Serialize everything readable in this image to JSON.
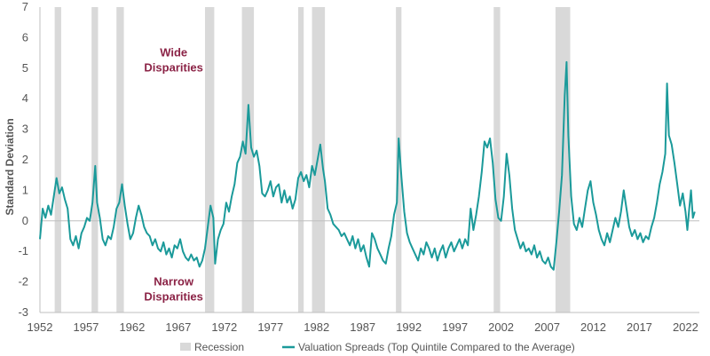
{
  "chart_data": {
    "type": "line",
    "ylabel": "Standard Deviation",
    "xlabel": "",
    "xlim": [
      1952,
      2023.5
    ],
    "ylim": [
      -3,
      7
    ],
    "x_ticks": [
      1952,
      1957,
      1962,
      1967,
      1972,
      1977,
      1982,
      1987,
      1992,
      1997,
      2002,
      2007,
      2012,
      2017,
      2022
    ],
    "y_ticks": [
      -3,
      -2,
      -1,
      0,
      1,
      2,
      3,
      4,
      5,
      6,
      7
    ],
    "grid": false,
    "legend_position": "bottom-center",
    "recession_legend": "Recession",
    "recession_color": "#d9d9d9",
    "recessions": [
      [
        1953.6,
        1954.3
      ],
      [
        1957.6,
        1958.3
      ],
      [
        1960.3,
        1961.1
      ],
      [
        1969.9,
        1970.9
      ],
      [
        1973.9,
        1975.2
      ],
      [
        1980.0,
        1980.6
      ],
      [
        1981.5,
        1982.9
      ],
      [
        1990.6,
        1991.2
      ],
      [
        2001.2,
        2001.9
      ],
      [
        2007.9,
        2009.5
      ]
    ],
    "annotations": [
      {
        "line1": "Wide",
        "line2": "Disparities",
        "x": 1966.5,
        "y": 5.3
      },
      {
        "line1": "Narrow",
        "line2": "Disparities",
        "x": 1966.5,
        "y": -2.2
      }
    ],
    "annotation_color": "#8b2346",
    "series": [
      {
        "name": "Valuation Spreads (Top Quintile Compared to the Average)",
        "color": "#1b9a9a",
        "points": [
          [
            1952.0,
            -0.6
          ],
          [
            1952.3,
            0.4
          ],
          [
            1952.6,
            0.1
          ],
          [
            1952.9,
            0.5
          ],
          [
            1953.2,
            0.2
          ],
          [
            1953.5,
            0.8
          ],
          [
            1953.8,
            1.4
          ],
          [
            1954.1,
            0.9
          ],
          [
            1954.4,
            1.1
          ],
          [
            1954.7,
            0.7
          ],
          [
            1955.0,
            0.4
          ],
          [
            1955.3,
            -0.6
          ],
          [
            1955.6,
            -0.8
          ],
          [
            1955.9,
            -0.5
          ],
          [
            1956.2,
            -0.9
          ],
          [
            1956.5,
            -0.4
          ],
          [
            1956.8,
            -0.2
          ],
          [
            1957.1,
            0.1
          ],
          [
            1957.4,
            0.0
          ],
          [
            1957.7,
            0.6
          ],
          [
            1958.0,
            1.8
          ],
          [
            1958.2,
            0.6
          ],
          [
            1958.5,
            0.1
          ],
          [
            1958.8,
            -0.6
          ],
          [
            1959.1,
            -0.8
          ],
          [
            1959.4,
            -0.5
          ],
          [
            1959.7,
            -0.6
          ],
          [
            1960.0,
            -0.2
          ],
          [
            1960.3,
            0.4
          ],
          [
            1960.6,
            0.6
          ],
          [
            1960.9,
            1.2
          ],
          [
            1961.2,
            0.5
          ],
          [
            1961.5,
            -0.1
          ],
          [
            1961.8,
            -0.6
          ],
          [
            1962.1,
            -0.4
          ],
          [
            1962.4,
            0.1
          ],
          [
            1962.7,
            0.5
          ],
          [
            1963.0,
            0.2
          ],
          [
            1963.3,
            -0.2
          ],
          [
            1963.6,
            -0.4
          ],
          [
            1963.9,
            -0.5
          ],
          [
            1964.2,
            -0.8
          ],
          [
            1964.5,
            -0.6
          ],
          [
            1964.8,
            -0.9
          ],
          [
            1965.1,
            -1.0
          ],
          [
            1965.4,
            -0.7
          ],
          [
            1965.7,
            -1.1
          ],
          [
            1966.0,
            -0.9
          ],
          [
            1966.3,
            -1.2
          ],
          [
            1966.6,
            -0.8
          ],
          [
            1966.9,
            -0.9
          ],
          [
            1967.2,
            -0.6
          ],
          [
            1967.5,
            -1.0
          ],
          [
            1967.8,
            -1.2
          ],
          [
            1968.1,
            -1.3
          ],
          [
            1968.4,
            -1.1
          ],
          [
            1968.7,
            -1.3
          ],
          [
            1969.0,
            -1.2
          ],
          [
            1969.3,
            -1.5
          ],
          [
            1969.6,
            -1.3
          ],
          [
            1969.9,
            -0.9
          ],
          [
            1970.2,
            -0.2
          ],
          [
            1970.5,
            0.5
          ],
          [
            1970.8,
            0.1
          ],
          [
            1971.0,
            -1.4
          ],
          [
            1971.3,
            -0.6
          ],
          [
            1971.6,
            -0.3
          ],
          [
            1971.9,
            -0.1
          ],
          [
            1972.2,
            0.6
          ],
          [
            1972.5,
            0.3
          ],
          [
            1972.8,
            0.8
          ],
          [
            1973.1,
            1.2
          ],
          [
            1973.4,
            1.9
          ],
          [
            1973.7,
            2.1
          ],
          [
            1974.0,
            2.6
          ],
          [
            1974.3,
            2.2
          ],
          [
            1974.6,
            3.8
          ],
          [
            1974.9,
            2.4
          ],
          [
            1975.2,
            2.1
          ],
          [
            1975.5,
            2.3
          ],
          [
            1975.8,
            1.8
          ],
          [
            1976.1,
            0.9
          ],
          [
            1976.4,
            0.8
          ],
          [
            1976.7,
            1.0
          ],
          [
            1977.0,
            1.3
          ],
          [
            1977.3,
            0.8
          ],
          [
            1977.6,
            1.1
          ],
          [
            1977.9,
            1.2
          ],
          [
            1978.2,
            0.6
          ],
          [
            1978.5,
            1.0
          ],
          [
            1978.8,
            0.6
          ],
          [
            1979.1,
            0.8
          ],
          [
            1979.4,
            0.4
          ],
          [
            1979.7,
            0.7
          ],
          [
            1980.0,
            1.4
          ],
          [
            1980.3,
            1.6
          ],
          [
            1980.6,
            1.3
          ],
          [
            1980.9,
            1.5
          ],
          [
            1981.2,
            1.1
          ],
          [
            1981.5,
            1.8
          ],
          [
            1981.8,
            1.5
          ],
          [
            1982.1,
            2.0
          ],
          [
            1982.4,
            2.5
          ],
          [
            1982.7,
            1.7
          ],
          [
            1982.9,
            1.3
          ],
          [
            1983.2,
            0.4
          ],
          [
            1983.5,
            0.2
          ],
          [
            1983.8,
            -0.1
          ],
          [
            1984.1,
            -0.2
          ],
          [
            1984.4,
            -0.3
          ],
          [
            1984.7,
            -0.5
          ],
          [
            1985.0,
            -0.4
          ],
          [
            1985.3,
            -0.6
          ],
          [
            1985.6,
            -0.8
          ],
          [
            1985.9,
            -0.5
          ],
          [
            1986.2,
            -0.9
          ],
          [
            1986.5,
            -0.6
          ],
          [
            1986.8,
            -1.0
          ],
          [
            1987.1,
            -0.8
          ],
          [
            1987.4,
            -1.2
          ],
          [
            1987.7,
            -1.5
          ],
          [
            1988.0,
            -0.4
          ],
          [
            1988.3,
            -0.6
          ],
          [
            1988.6,
            -0.9
          ],
          [
            1988.9,
            -1.1
          ],
          [
            1989.2,
            -1.3
          ],
          [
            1989.5,
            -1.4
          ],
          [
            1989.8,
            -0.9
          ],
          [
            1990.1,
            -0.5
          ],
          [
            1990.4,
            0.2
          ],
          [
            1990.7,
            0.6
          ],
          [
            1990.9,
            2.7
          ],
          [
            1991.2,
            1.4
          ],
          [
            1991.5,
            0.3
          ],
          [
            1991.8,
            -0.4
          ],
          [
            1992.1,
            -0.7
          ],
          [
            1992.4,
            -0.9
          ],
          [
            1992.7,
            -1.1
          ],
          [
            1993.0,
            -1.3
          ],
          [
            1993.3,
            -0.9
          ],
          [
            1993.6,
            -1.1
          ],
          [
            1993.9,
            -0.7
          ],
          [
            1994.2,
            -0.9
          ],
          [
            1994.5,
            -1.2
          ],
          [
            1994.8,
            -0.9
          ],
          [
            1995.1,
            -1.3
          ],
          [
            1995.4,
            -1.0
          ],
          [
            1995.7,
            -0.8
          ],
          [
            1996.0,
            -1.2
          ],
          [
            1996.3,
            -0.9
          ],
          [
            1996.6,
            -0.7
          ],
          [
            1996.9,
            -1.0
          ],
          [
            1997.2,
            -0.8
          ],
          [
            1997.5,
            -0.6
          ],
          [
            1997.8,
            -0.9
          ],
          [
            1998.1,
            -0.6
          ],
          [
            1998.4,
            -0.8
          ],
          [
            1998.7,
            0.4
          ],
          [
            1999.0,
            -0.3
          ],
          [
            1999.3,
            0.2
          ],
          [
            1999.6,
            0.8
          ],
          [
            1999.9,
            1.6
          ],
          [
            2000.2,
            2.6
          ],
          [
            2000.5,
            2.4
          ],
          [
            2000.8,
            2.7
          ],
          [
            2001.1,
            1.9
          ],
          [
            2001.4,
            0.7
          ],
          [
            2001.7,
            0.1
          ],
          [
            2002.0,
            0.0
          ],
          [
            2002.3,
            0.8
          ],
          [
            2002.6,
            2.2
          ],
          [
            2002.9,
            1.5
          ],
          [
            2003.2,
            0.4
          ],
          [
            2003.5,
            -0.3
          ],
          [
            2003.8,
            -0.6
          ],
          [
            2004.1,
            -0.9
          ],
          [
            2004.4,
            -0.7
          ],
          [
            2004.7,
            -1.0
          ],
          [
            2005.0,
            -0.9
          ],
          [
            2005.3,
            -1.1
          ],
          [
            2005.6,
            -0.8
          ],
          [
            2005.9,
            -1.2
          ],
          [
            2006.2,
            -1.0
          ],
          [
            2006.5,
            -1.3
          ],
          [
            2006.8,
            -1.4
          ],
          [
            2007.1,
            -1.2
          ],
          [
            2007.4,
            -1.5
          ],
          [
            2007.7,
            -1.6
          ],
          [
            2008.0,
            -0.7
          ],
          [
            2008.3,
            0.3
          ],
          [
            2008.6,
            1.5
          ],
          [
            2008.9,
            4.1
          ],
          [
            2009.1,
            5.2
          ],
          [
            2009.3,
            2.8
          ],
          [
            2009.6,
            0.8
          ],
          [
            2009.9,
            -0.1
          ],
          [
            2010.2,
            -0.3
          ],
          [
            2010.5,
            0.1
          ],
          [
            2010.8,
            -0.2
          ],
          [
            2011.1,
            0.4
          ],
          [
            2011.4,
            1.0
          ],
          [
            2011.7,
            1.3
          ],
          [
            2012.0,
            0.6
          ],
          [
            2012.3,
            0.2
          ],
          [
            2012.6,
            -0.3
          ],
          [
            2012.9,
            -0.6
          ],
          [
            2013.2,
            -0.8
          ],
          [
            2013.5,
            -0.4
          ],
          [
            2013.8,
            -0.7
          ],
          [
            2014.1,
            -0.3
          ],
          [
            2014.4,
            0.1
          ],
          [
            2014.7,
            -0.2
          ],
          [
            2015.0,
            0.3
          ],
          [
            2015.3,
            1.0
          ],
          [
            2015.6,
            0.4
          ],
          [
            2015.9,
            -0.2
          ],
          [
            2016.2,
            -0.5
          ],
          [
            2016.5,
            -0.3
          ],
          [
            2016.8,
            -0.6
          ],
          [
            2017.1,
            -0.4
          ],
          [
            2017.4,
            -0.7
          ],
          [
            2017.7,
            -0.5
          ],
          [
            2018.0,
            -0.6
          ],
          [
            2018.3,
            -0.2
          ],
          [
            2018.6,
            0.1
          ],
          [
            2018.9,
            0.6
          ],
          [
            2019.2,
            1.2
          ],
          [
            2019.5,
            1.6
          ],
          [
            2019.8,
            2.2
          ],
          [
            2020.0,
            4.5
          ],
          [
            2020.2,
            2.8
          ],
          [
            2020.5,
            2.5
          ],
          [
            2020.8,
            1.9
          ],
          [
            2021.1,
            1.2
          ],
          [
            2021.4,
            0.5
          ],
          [
            2021.7,
            0.9
          ],
          [
            2022.0,
            0.3
          ],
          [
            2022.2,
            -0.3
          ],
          [
            2022.4,
            0.4
          ],
          [
            2022.6,
            1.0
          ],
          [
            2022.8,
            0.1
          ],
          [
            2023.0,
            0.3
          ]
        ]
      }
    ]
  }
}
